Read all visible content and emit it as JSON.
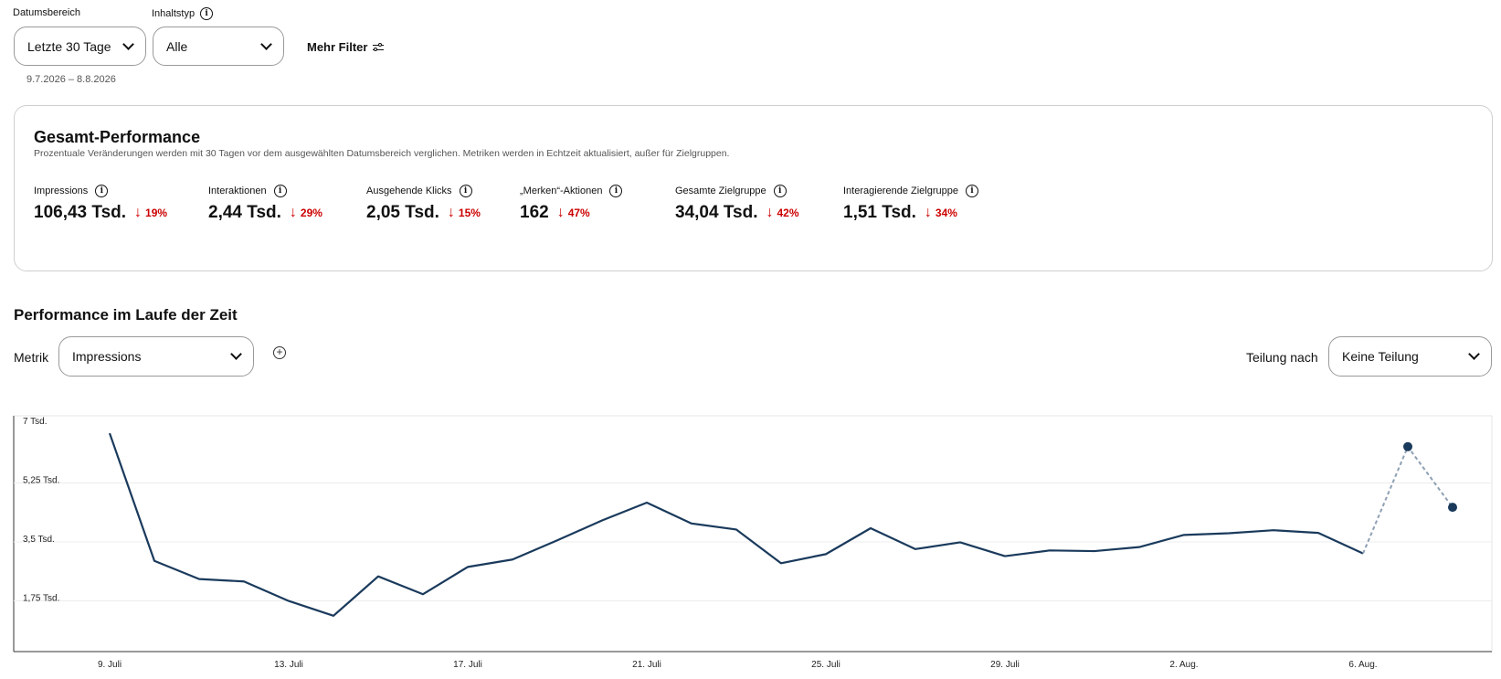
{
  "filters": {
    "date_label": "Datumsbereich",
    "date_value": "Letzte 30 Tage",
    "date_range": "9.7.2026 – 8.8.2026",
    "content_label": "Inhaltstyp",
    "content_value": "Alle",
    "more_filters": "Mehr Filter",
    "info_glyph": "i"
  },
  "overview": {
    "title": "Gesamt-Performance",
    "subtitle": "Prozentuale Veränderungen werden mit 30 Tagen vor dem ausgewählten Datumsbereich verglichen. Metriken werden in Echtzeit aktualisiert, außer für Zielgruppen.",
    "change_color": "#cc0000",
    "arrow": "↓",
    "metrics": [
      {
        "label": "Impressions",
        "value": "106,43 Tsd.",
        "change": "19%"
      },
      {
        "label": "Interaktionen",
        "value": "2,44 Tsd.",
        "change": "29%"
      },
      {
        "label": "Ausgehende Klicks",
        "value": "2,05 Tsd.",
        "change": "15%"
      },
      {
        "label": "„Merken“-Aktionen",
        "value": "162",
        "change": "47%"
      },
      {
        "label": "Gesamte Zielgruppe",
        "value": "34,04 Tsd.",
        "change": "42%"
      },
      {
        "label": "Interagierende Zielgruppe",
        "value": "1,51 Tsd.",
        "change": "34%"
      }
    ]
  },
  "trend": {
    "title": "Performance im Laufe der Zeit",
    "metric_label": "Metrik",
    "metric_value": "Impressions",
    "add_glyph": "+",
    "split_label": "Teilung nach",
    "split_value": "Keine Teilung"
  },
  "chart_data": {
    "type": "line",
    "line_color": "#1a3a5c",
    "y_ticks": [
      "7 Tsd.",
      "5,25 Tsd.",
      "3,5 Tsd.",
      "1,75 Tsd."
    ],
    "y_tick_values": [
      7000,
      5250,
      3500,
      1750
    ],
    "ylim": [
      0,
      7000
    ],
    "x_ticks": [
      "9. Juli",
      "13. Juli",
      "17. Juli",
      "21. Juli",
      "25. Juli",
      "29. Juli",
      "2. Aug.",
      "6. Aug."
    ],
    "x_tick_days": [
      0,
      4,
      8,
      12,
      16,
      20,
      24,
      28
    ],
    "values": [
      6700,
      2910,
      2370,
      2300,
      1720,
      1280,
      2450,
      1920,
      2730,
      2950,
      3520,
      4110,
      4640,
      4020,
      3840,
      2840,
      3110,
      3880,
      3260,
      3460,
      3050,
      3220,
      3200,
      3320,
      3680,
      3730,
      3820,
      3740,
      3130
    ],
    "estimated_values": [
      6300,
      4500
    ],
    "grid": true,
    "legend": "none"
  }
}
